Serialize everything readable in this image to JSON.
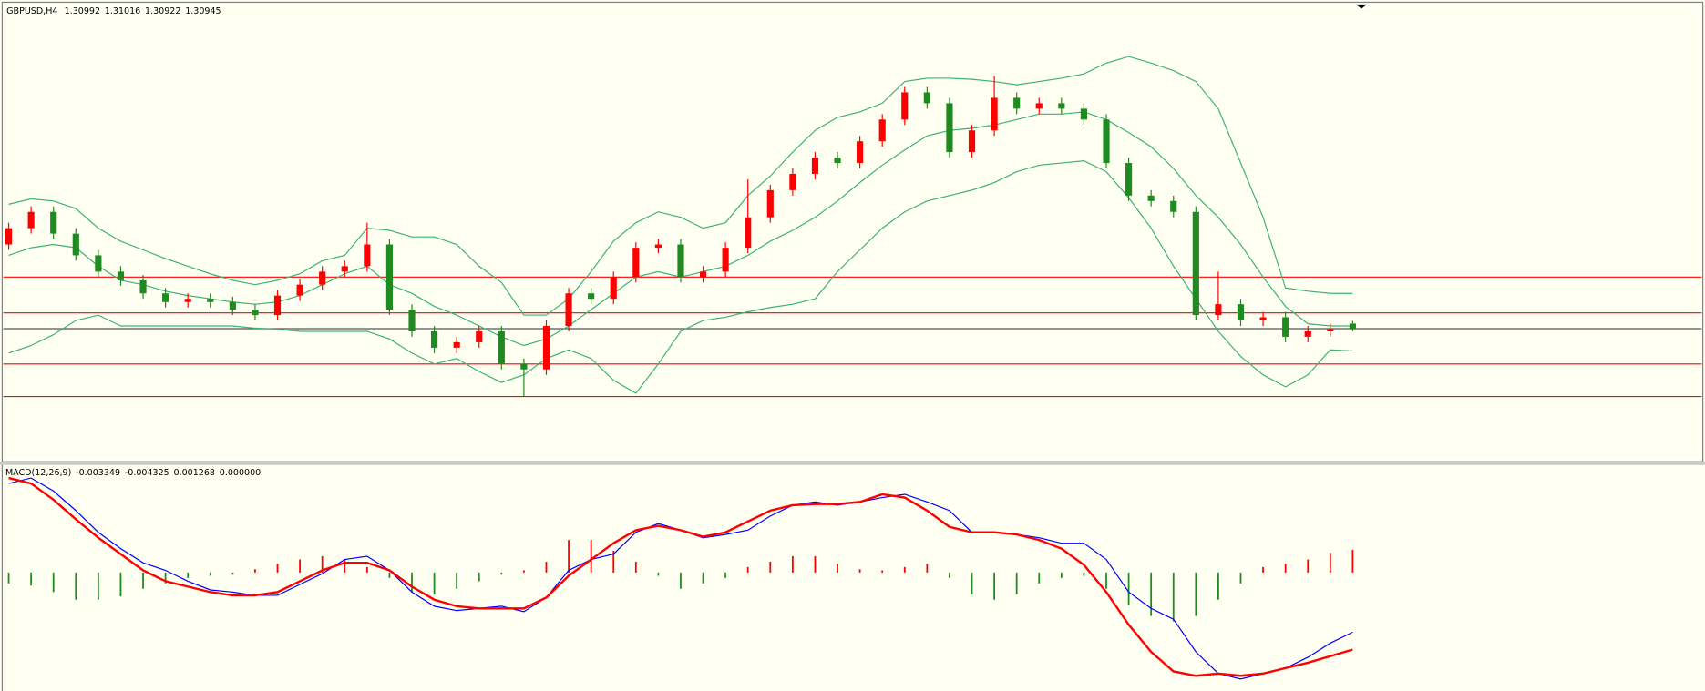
{
  "chart_data": [
    {
      "type": "candlestick",
      "title": "GBPUSD,H4",
      "up_color": "#ff0000",
      "down_color": "#1f8a1f",
      "open": [
        1.3172,
        1.3187,
        1.3202,
        1.3182,
        1.3162,
        1.3147,
        1.3139,
        1.3127,
        1.3119,
        1.3122,
        1.3119,
        1.3112,
        1.3107,
        1.3125,
        1.3135,
        1.3147,
        1.3152,
        1.3172,
        1.3112,
        1.3092,
        1.3077,
        1.3082,
        1.3092,
        1.3062,
        1.3057,
        1.3097,
        1.3127,
        1.3122,
        1.3142,
        1.3169,
        1.3172,
        1.3142,
        1.3147,
        1.3169,
        1.3197,
        1.3222,
        1.3237,
        1.3252,
        1.3247,
        1.3267,
        1.3287,
        1.3312,
        1.3302,
        1.3257,
        1.3277,
        1.3307,
        1.3297,
        1.3302,
        1.3297,
        1.3287,
        1.3247,
        1.3217,
        1.3212,
        1.3202,
        1.3107,
        1.3117,
        1.3102,
        1.3105,
        1.3087,
        1.3092,
        1.30992
      ],
      "high": [
        1.3192,
        1.3207,
        1.3207,
        1.3187,
        1.3167,
        1.3152,
        1.3144,
        1.3132,
        1.3127,
        1.3127,
        1.3124,
        1.3117,
        1.313,
        1.314,
        1.3152,
        1.3157,
        1.3192,
        1.3177,
        1.3117,
        1.3097,
        1.3087,
        1.3097,
        1.3097,
        1.3067,
        1.3102,
        1.3132,
        1.3132,
        1.3147,
        1.3174,
        1.3177,
        1.3177,
        1.3152,
        1.3174,
        1.3232,
        1.3227,
        1.3242,
        1.3257,
        1.3257,
        1.3272,
        1.3292,
        1.3317,
        1.3317,
        1.3307,
        1.3282,
        1.3327,
        1.3312,
        1.3307,
        1.3307,
        1.3302,
        1.3292,
        1.3252,
        1.3222,
        1.3217,
        1.3207,
        1.3147,
        1.3122,
        1.311,
        1.311,
        1.3097,
        1.3099,
        1.31016
      ],
      "low": [
        1.3167,
        1.3182,
        1.3177,
        1.3157,
        1.3142,
        1.3134,
        1.3122,
        1.3114,
        1.3114,
        1.3114,
        1.3107,
        1.3102,
        1.3102,
        1.312,
        1.313,
        1.3142,
        1.3147,
        1.3107,
        1.3087,
        1.3072,
        1.3072,
        1.3077,
        1.3057,
        1.3032,
        1.3052,
        1.3092,
        1.3117,
        1.3117,
        1.3137,
        1.3164,
        1.3137,
        1.3137,
        1.3142,
        1.3164,
        1.3192,
        1.3217,
        1.3232,
        1.3242,
        1.3242,
        1.3262,
        1.3282,
        1.3297,
        1.3252,
        1.3252,
        1.3272,
        1.3292,
        1.3292,
        1.3292,
        1.3282,
        1.3242,
        1.3212,
        1.3207,
        1.3197,
        1.3102,
        1.3102,
        1.3097,
        1.3097,
        1.3082,
        1.3082,
        1.3087,
        1.30922
      ],
      "close": [
        1.3187,
        1.3202,
        1.3182,
        1.3162,
        1.3147,
        1.3139,
        1.3127,
        1.3119,
        1.3122,
        1.3119,
        1.3112,
        1.3107,
        1.3125,
        1.3135,
        1.3147,
        1.3152,
        1.3172,
        1.3112,
        1.3092,
        1.3077,
        1.3082,
        1.3092,
        1.3062,
        1.3057,
        1.3097,
        1.3127,
        1.3122,
        1.3142,
        1.3169,
        1.3172,
        1.3142,
        1.3147,
        1.3169,
        1.3197,
        1.3222,
        1.3237,
        1.3252,
        1.3247,
        1.3267,
        1.3287,
        1.3312,
        1.3302,
        1.3257,
        1.3277,
        1.3307,
        1.3297,
        1.3302,
        1.3297,
        1.3287,
        1.3247,
        1.3217,
        1.3212,
        1.3202,
        1.3107,
        1.3117,
        1.3102,
        1.3105,
        1.3087,
        1.3092,
        1.3094,
        1.30945
      ],
      "bands": {
        "color": "#3cb371",
        "upper": [
          1.3209,
          1.3214,
          1.3212,
          1.3205,
          1.3187,
          1.3175,
          1.3167,
          1.3159,
          1.3152,
          1.3145,
          1.3139,
          1.3135,
          1.3139,
          1.3145,
          1.3157,
          1.3162,
          1.3187,
          1.3185,
          1.3179,
          1.3179,
          1.3172,
          1.3152,
          1.3137,
          1.3107,
          1.3107,
          1.3122,
          1.3147,
          1.3175,
          1.3192,
          1.3202,
          1.3197,
          1.3187,
          1.3192,
          1.3217,
          1.3235,
          1.3257,
          1.3277,
          1.3289,
          1.3294,
          1.3302,
          1.3322,
          1.3325,
          1.3325,
          1.3324,
          1.3322,
          1.3319,
          1.3322,
          1.3325,
          1.3329,
          1.3339,
          1.3345,
          1.3339,
          1.3332,
          1.3322,
          1.3297,
          1.3247,
          1.3197,
          1.3132,
          1.3129,
          1.3127,
          1.3127
        ],
        "middle": [
          1.3162,
          1.3169,
          1.3172,
          1.3169,
          1.3152,
          1.3139,
          1.3135,
          1.3129,
          1.3125,
          1.3122,
          1.3119,
          1.3117,
          1.3119,
          1.3125,
          1.3135,
          1.3145,
          1.3152,
          1.3135,
          1.3127,
          1.3115,
          1.3107,
          1.3097,
          1.3087,
          1.3079,
          1.3085,
          1.3097,
          1.3112,
          1.3127,
          1.3142,
          1.3147,
          1.3142,
          1.3147,
          1.3152,
          1.3162,
          1.3175,
          1.3185,
          1.3197,
          1.3212,
          1.3229,
          1.3245,
          1.3259,
          1.3272,
          1.3277,
          1.3279,
          1.3282,
          1.3287,
          1.3292,
          1.3292,
          1.3294,
          1.3287,
          1.3275,
          1.3262,
          1.3242,
          1.3217,
          1.3197,
          1.3172,
          1.3142,
          1.3115,
          1.3099,
          1.3097,
          1.3097
        ],
        "lower": [
          1.3072,
          1.3079,
          1.3089,
          1.3102,
          1.3107,
          1.3097,
          1.3097,
          1.3097,
          1.3097,
          1.3097,
          1.3097,
          1.3095,
          1.3094,
          1.3092,
          1.3092,
          1.3092,
          1.3092,
          1.3085,
          1.3072,
          1.3062,
          1.3067,
          1.3055,
          1.3045,
          1.3052,
          1.3067,
          1.3075,
          1.3067,
          1.3047,
          1.3035,
          1.3062,
          1.3092,
          1.3102,
          1.3105,
          1.311,
          1.3114,
          1.3117,
          1.3122,
          1.3147,
          1.3167,
          1.3187,
          1.3202,
          1.3212,
          1.3217,
          1.3222,
          1.3229,
          1.3239,
          1.3245,
          1.3247,
          1.3249,
          1.3239,
          1.3215,
          1.3187,
          1.3152,
          1.3122,
          1.3092,
          1.3069,
          1.3052,
          1.3041,
          1.3052,
          1.3075,
          1.3074
        ]
      },
      "levels": [
        1.3142,
        1.3109,
        1.3062,
        1.3032
      ],
      "level_color": "#ff0000",
      "price_line_color": "#555555",
      "ylim": [
        1.2972,
        1.3392
      ]
    },
    {
      "type": "macd",
      "title": "MACD(12,26,9)",
      "extra_text": "0.000000",
      "series": [
        {
          "color": "#0000ff",
          "values": [
            0.005002,
            0.005307,
            0.004575,
            0.003477,
            0.002257,
            0.001342,
            0.000549,
            0.000122,
            -0.000488,
            -0.000976,
            -0.001098,
            -0.001281,
            -0.001281,
            -0.000671,
            -6.1e-05,
            0.000732,
            0.000915,
            0.000122,
            -0.001098,
            -0.001891,
            -0.002135,
            -0.002013,
            -0.001891,
            -0.002196,
            -0.001403,
            0.000122,
            0.000732,
            0.001037,
            0.002257,
            0.002745,
            0.002379,
            0.001952,
            0.002135,
            0.002379,
            0.003172,
            0.003782,
            0.003965,
            0.003782,
            0.003965,
            0.004209,
            0.004392,
            0.003965,
            0.003477,
            0.002257,
            0.002257,
            0.002135,
            0.001952,
            0.001647,
            0.001647,
            0.000732,
            -0.001098,
            -0.002013,
            -0.002623,
            -0.004453,
            -0.005673,
            -0.005978,
            -0.005673,
            -0.005368,
            -0.004758,
            -0.003965,
            -0.003349
          ]
        },
        {
          "color": "#ff0000",
          "values": [
            0.005307,
            0.005002,
            0.004087,
            0.002989,
            0.001952,
            0.001037,
            0.000122,
            -0.000488,
            -0.000793,
            -0.001098,
            -0.001281,
            -0.001281,
            -0.001098,
            -0.000488,
            0.000122,
            0.000549,
            0.000549,
            0.000122,
            -0.000793,
            -0.001525,
            -0.001891,
            -0.002013,
            -0.002013,
            -0.002013,
            -0.001403,
            -0.000183,
            0.000732,
            0.001647,
            0.002379,
            0.002623,
            0.002379,
            0.002013,
            0.002257,
            0.002867,
            0.003477,
            0.003782,
            0.003843,
            0.003843,
            0.003965,
            0.004392,
            0.004209,
            0.003477,
            0.002562,
            0.002257,
            0.002257,
            0.002135,
            0.00183,
            0.001342,
            0.000427,
            -0.001098,
            -0.002928,
            -0.004453,
            -0.005551,
            -0.005795,
            -0.005673,
            -0.005795,
            -0.005673,
            -0.005368,
            -0.005063,
            -0.004697,
            -0.004325
          ]
        },
        {
          "up_color": "#ff0000",
          "down_color": "#1f8a1f",
          "values": [
            -0.00061,
            -0.000732,
            -0.001098,
            -0.001525,
            -0.001525,
            -0.001342,
            -0.000915,
            -0.00061,
            -0.000305,
            -0.000183,
            -0.000122,
            0.000183,
            0.000488,
            0.000732,
            0.000915,
            0.000732,
            0.000305,
            -0.000305,
            -0.001098,
            -0.00122,
            -0.000915,
            -0.000488,
            -0.000122,
            0.000122,
            0.00061,
            0.00183,
            0.00183,
            0.00122,
            0.00061,
            -0.000183,
            -0.000915,
            -0.00061,
            -0.000305,
            0.000305,
            0.00061,
            0.000915,
            0.000915,
            0.000488,
            0.000183,
            0.000122,
            0.000305,
            0.000488,
            -0.000305,
            -0.00122,
            -0.001525,
            -0.00122,
            -0.00061,
            -0.000305,
            -0.000183,
            -0.000915,
            -0.00183,
            -0.00244,
            -0.002745,
            -0.00244,
            -0.001525,
            -0.00061,
            0.000305,
            0.000488,
            0.000732,
            0.001098,
            0.001268
          ]
        }
      ],
      "ylim": [
        -0.006649,
        0.006039
      ]
    }
  ]
}
